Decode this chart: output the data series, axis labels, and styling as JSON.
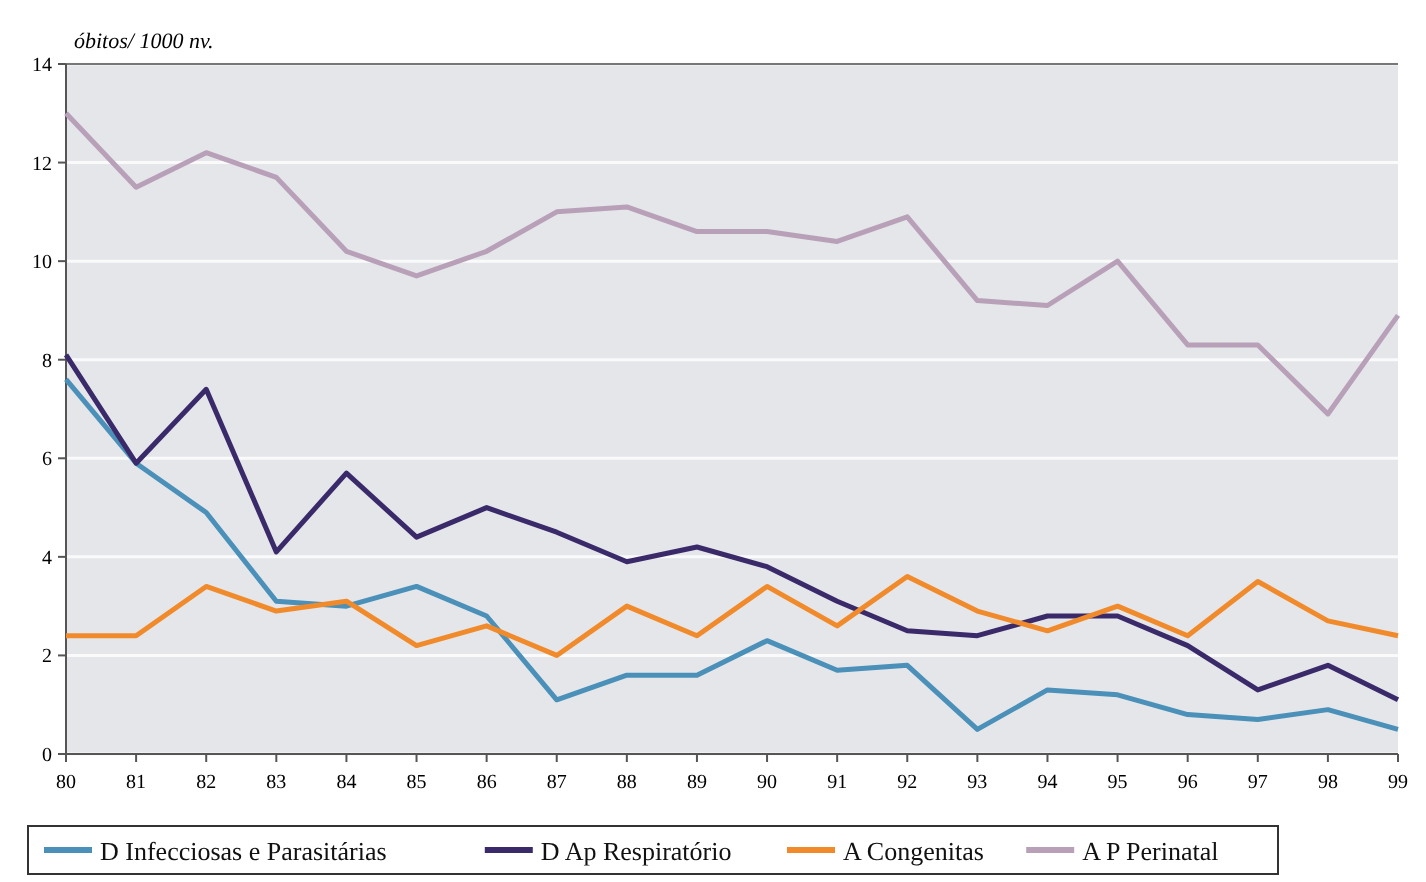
{
  "chart_data": {
    "type": "line",
    "ylabel": "óbitos/ 1000 nv.",
    "categories": [
      "80",
      "81",
      "82",
      "83",
      "84",
      "85",
      "86",
      "87",
      "88",
      "89",
      "90",
      "91",
      "92",
      "93",
      "94",
      "95",
      "96",
      "97",
      "98",
      "99"
    ],
    "ylim": [
      0,
      14
    ],
    "yticks": [
      0,
      2,
      4,
      6,
      8,
      10,
      12,
      14
    ],
    "grid": "y",
    "legend": "bottom",
    "marker": "none",
    "line_style": "solid",
    "series": [
      {
        "name": "D Infecciosas e Parasitárias",
        "color": "#4a90b8",
        "values": [
          7.6,
          5.9,
          4.9,
          3.1,
          3.0,
          3.4,
          2.8,
          1.1,
          1.6,
          1.6,
          2.3,
          1.7,
          1.8,
          0.5,
          1.3,
          1.2,
          0.8,
          0.7,
          0.9,
          0.5
        ]
      },
      {
        "name": "D Ap Respiratório",
        "color": "#3a2a6a",
        "values": [
          8.1,
          5.9,
          7.4,
          4.1,
          5.7,
          4.4,
          5.0,
          4.5,
          3.9,
          4.2,
          3.8,
          3.1,
          2.5,
          2.4,
          2.8,
          2.8,
          2.2,
          1.3,
          1.8,
          1.1
        ]
      },
      {
        "name": "A Congenitas",
        "color": "#f08a2a",
        "values": [
          2.4,
          2.4,
          3.4,
          2.9,
          3.1,
          2.2,
          2.6,
          2.0,
          3.0,
          2.4,
          3.4,
          2.6,
          3.6,
          2.9,
          2.5,
          3.0,
          2.4,
          3.5,
          2.7,
          2.4
        ]
      },
      {
        "name": "A P Perinatal",
        "color": "#b8a0b8",
        "values": [
          13.0,
          11.5,
          12.2,
          11.7,
          10.2,
          9.7,
          10.2,
          11.0,
          11.1,
          10.6,
          10.6,
          10.4,
          10.9,
          9.2,
          9.1,
          10.0,
          8.3,
          8.3,
          6.9,
          8.9
        ]
      }
    ]
  }
}
